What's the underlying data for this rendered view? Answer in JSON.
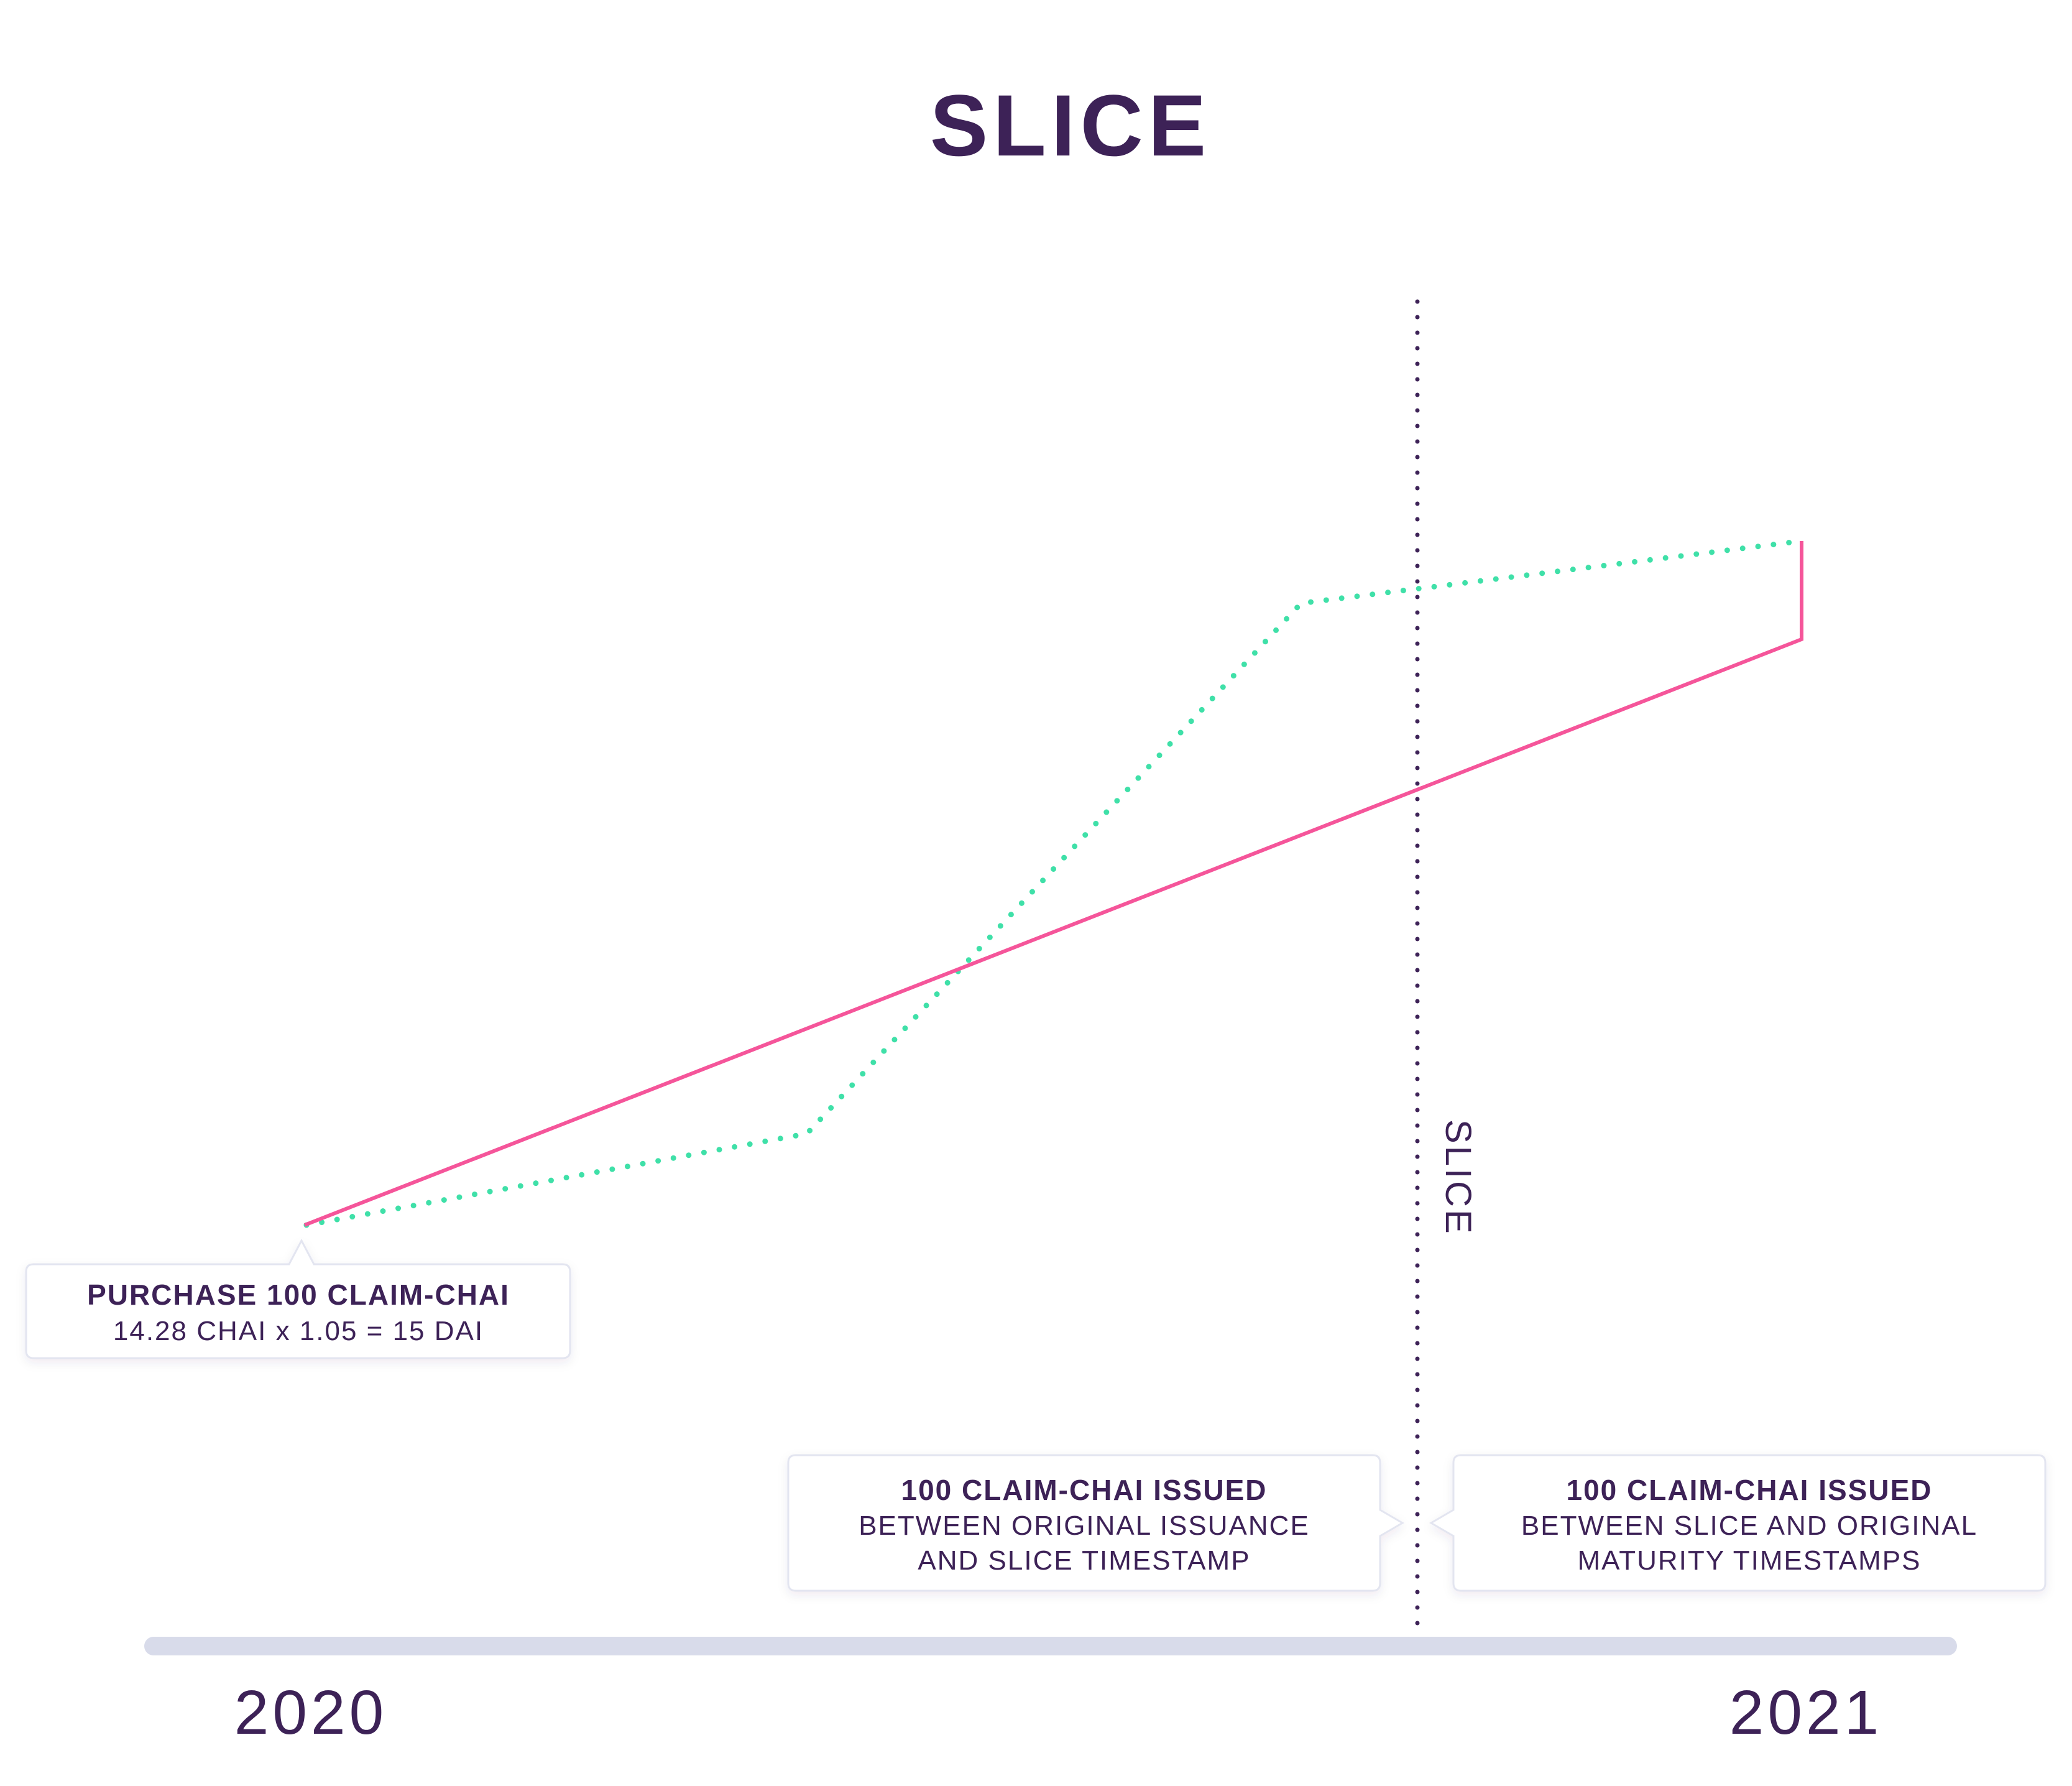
{
  "title": "SLICE",
  "slice_line_label": "SLICE",
  "timeline": {
    "start_label": "2020",
    "end_label": "2021"
  },
  "callouts": {
    "purchase": {
      "title": "PURCHASE 100 CLAIM-CHAI",
      "body": [
        "14.28 CHAI x 1.05 = 15 DAI"
      ]
    },
    "before_slice": {
      "title": "100 CLAIM-CHAI ISSUED",
      "body": [
        "BETWEEN ORIGINAL ISSUANCE",
        "AND SLICE TIMESTAMP"
      ]
    },
    "after_slice": {
      "title": "100 CLAIM-CHAI ISSUED",
      "body": [
        "BETWEEN SLICE AND ORIGINAL",
        "MATURITY TIMESTAMPS"
      ]
    }
  },
  "colors": {
    "text": "#3d2257",
    "pink_line": "#f5559a",
    "green_dotted": "#3fe0a8",
    "slice_dotted": "#3d2257",
    "timeline_bar": "#d8dbea",
    "callout_border": "#e3e5f0"
  }
}
